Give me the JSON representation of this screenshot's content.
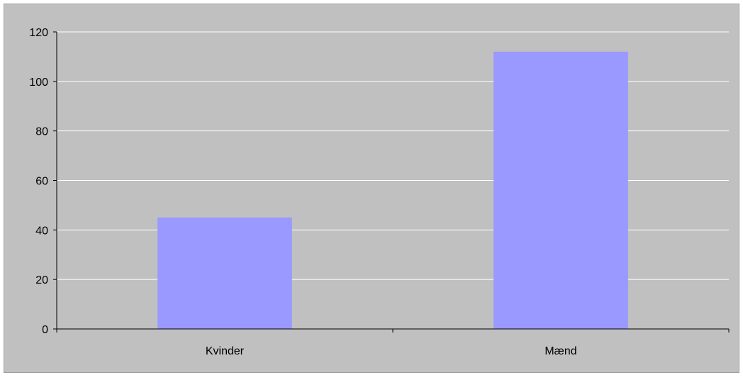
{
  "chart_data": {
    "type": "bar",
    "categories": [
      "Kvinder",
      "Mænd"
    ],
    "values": [
      45,
      112
    ],
    "ylim": [
      0,
      120
    ],
    "yticks": [
      0,
      20,
      40,
      60,
      80,
      100,
      120
    ],
    "grid": true,
    "legend": "none",
    "colors": {
      "chart_area": "#c0c0c0",
      "plot_area": "#c0c0c0",
      "bar": "#9999ff",
      "gridline": "#ffffff",
      "axis": "#000000",
      "border": "#a0a0a0"
    }
  }
}
